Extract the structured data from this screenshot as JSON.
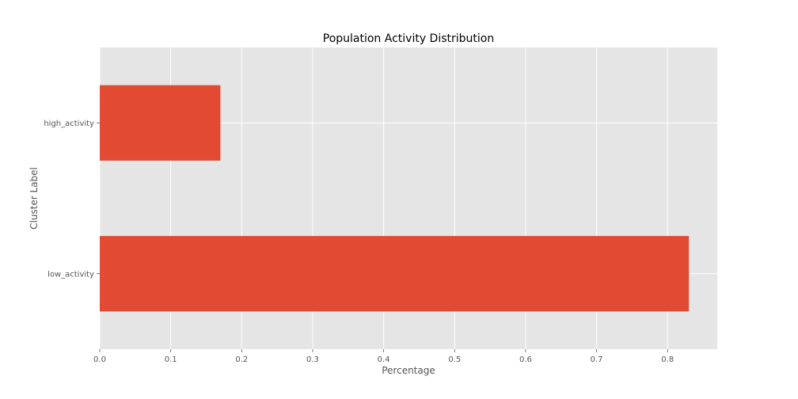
{
  "chart_data": {
    "type": "bar",
    "orientation": "horizontal",
    "title": "Population Activity Distribution",
    "xlabel": "Percentage",
    "ylabel": "Cluster Label",
    "categories": [
      "low_activity",
      "high_activity"
    ],
    "values": [
      0.83,
      0.17
    ],
    "xlim": [
      0,
      0.87
    ],
    "xticks": [
      0.0,
      0.1,
      0.2,
      0.3,
      0.4,
      0.5,
      0.6,
      0.7,
      0.8
    ],
    "xtick_labels": [
      "0.0",
      "0.1",
      "0.2",
      "0.3",
      "0.4",
      "0.5",
      "0.6",
      "0.7",
      "0.8"
    ],
    "grid": true,
    "legend": false,
    "colors": {
      "bar": "#E24A33",
      "plot_background": "#E5E5E5",
      "grid": "#FFFFFF",
      "tick_text": "#555555",
      "title_text": "#000000"
    }
  }
}
